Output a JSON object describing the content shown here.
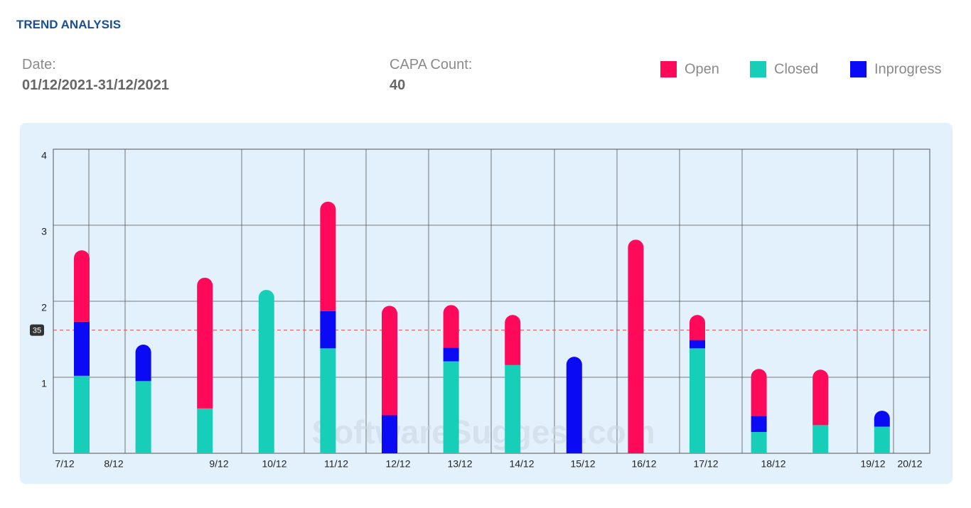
{
  "title": "TREND ANALYSIS",
  "date_label": "Date:",
  "date_value": "01/12/2021-31/12/2021",
  "count_label": "CAPA Count:",
  "count_value": "40",
  "chart_data": {
    "type": "stacked_bar",
    "categories": [
      "7/12",
      "8/12",
      "9/12",
      "10/12",
      "11/12",
      "12/12",
      "13/12",
      "14/12",
      "15/12",
      "16/12",
      "17/12",
      "18/12",
      "19/12",
      "20/12"
    ],
    "series": [
      {
        "name": "Closed",
        "color": "#17cfb8",
        "values": [
          1.02,
          0.95,
          0.59,
          2.15,
          1.38,
          0,
          1.21,
          1.16,
          0,
          0,
          1.38,
          0.28,
          0.37,
          0.35
        ]
      },
      {
        "name": "Inprogress",
        "color": "#0a0af5",
        "values": [
          0.71,
          0.48,
          0,
          0,
          0.49,
          0.5,
          0.18,
          0,
          1.27,
          0,
          0.11,
          0.21,
          0,
          0.21
        ]
      },
      {
        "name": "Open",
        "color": "#ff0a5a",
        "values": [
          0.94,
          0,
          1.72,
          0,
          1.44,
          1.44,
          0.56,
          0.66,
          0,
          2.81,
          0.33,
          0.62,
          0.73,
          0
        ]
      }
    ],
    "legend_order": [
      2,
      0,
      1
    ],
    "ylim": [
      0,
      4
    ],
    "yticks": [
      1,
      2,
      3,
      4
    ],
    "grid": true,
    "reference_value": 1.62,
    "reference_label": "35",
    "reference_color": "#e05050",
    "watermark": "SoftwareSuggest.com"
  }
}
